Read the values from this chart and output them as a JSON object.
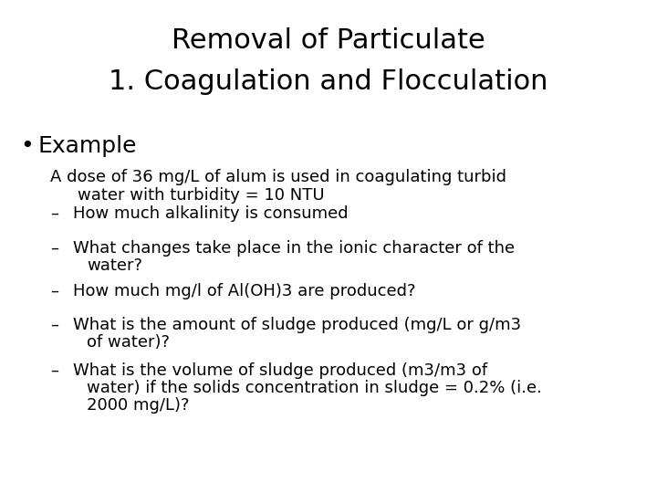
{
  "title_line1": "Removal of Particulate",
  "title_line2": "1. Coagulation and Flocculation",
  "title_fontsize": 22,
  "bullet_text": "Example",
  "bullet_fontsize": 18,
  "sub_fontsize": 13,
  "intro_line1": "A dose of 36 mg/L of alum is used in coagulating turbid",
  "intro_line2": "water with turbidity = 10 NTU",
  "background_color": "#ffffff",
  "text_color": "#000000",
  "sub_items": [
    "How much alkalinity is consumed",
    "What changes take place in the ionic character of the\n    water?",
    "How much mg/l of Al(OH)3 are produced?",
    "What is the amount of sludge produced (mg/L or g/m3\n    of water)?",
    "What is the volume of sludge produced (m3/m3 of\n    water) if the solids concentration in sludge = 0.2% (i.e.\n    2000 mg/L)?"
  ]
}
